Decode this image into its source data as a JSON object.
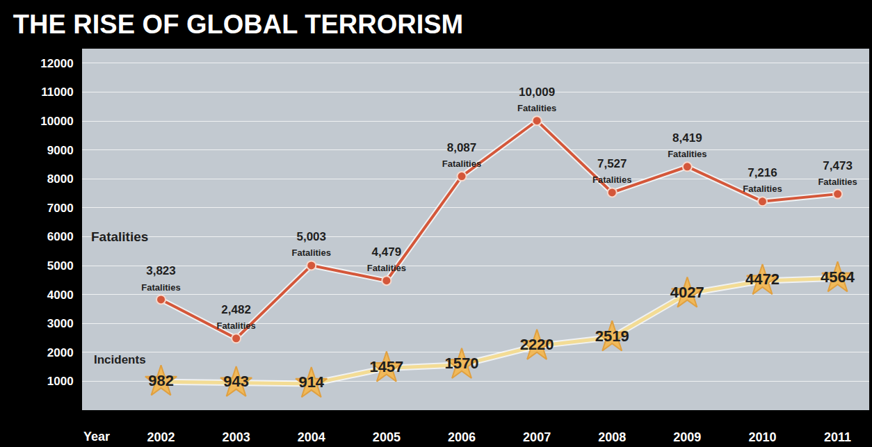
{
  "chart_data": {
    "type": "line",
    "title": "THE RISE OF GLOBAL TERRORISM",
    "x_label": "Year",
    "categories": [
      "2002",
      "2003",
      "2004",
      "2005",
      "2006",
      "2007",
      "2008",
      "2009",
      "2010",
      "2011"
    ],
    "series": [
      {
        "name": "Fatalities",
        "color": "#d4573a",
        "marker": "circle",
        "line_style": "solid",
        "values": [
          3823,
          2482,
          5003,
          4479,
          8087,
          10009,
          7527,
          8419,
          7216,
          7473
        ],
        "value_labels": [
          "3,823 Fatalities",
          "2,482 Fatalities",
          "5,003 Fatalities",
          "4,479 Fatalities",
          "8,087 Fatalities",
          "10,009 Fatalities",
          "7,527 Fatalities",
          "8,419 Fatalities",
          "7,216 Fatalities",
          "7,473 Fatalities"
        ]
      },
      {
        "name": "Incidents",
        "color": "#f3dc95",
        "marker": "star",
        "line_style": "solid",
        "values": [
          982,
          943,
          914,
          1457,
          1570,
          2220,
          2519,
          4027,
          4472,
          4564
        ]
      }
    ],
    "ylim": [
      0,
      12500
    ],
    "yticks": [
      1000,
      2000,
      3000,
      4000,
      5000,
      6000,
      7000,
      8000,
      9000,
      10000,
      11000,
      12000
    ],
    "grid": true,
    "data_labels": true
  }
}
